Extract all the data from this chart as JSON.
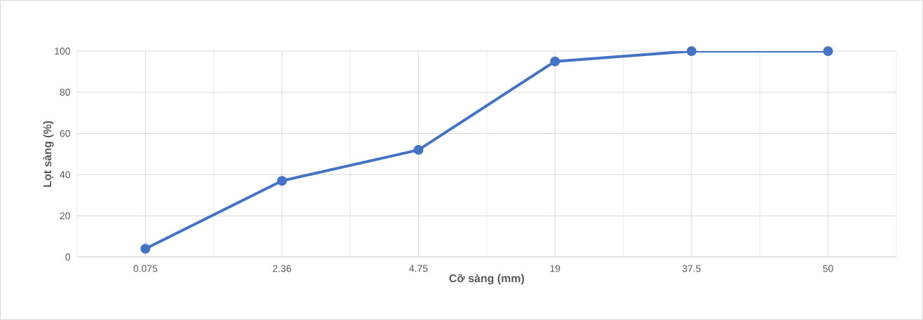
{
  "chart_data": {
    "type": "line",
    "xlabel": "Cỡ sàng (mm)",
    "ylabel": "Lọt sàng (%)",
    "categories": [
      "0.075",
      "2.36",
      "4.75",
      "19",
      "37.5",
      "50"
    ],
    "series": [
      {
        "color": "#4472c4",
        "values": [
          4,
          37,
          52,
          95,
          100,
          100
        ]
      }
    ],
    "ylim": [
      0,
      100
    ],
    "yticks": [
      0,
      20,
      40,
      60,
      80,
      100
    ],
    "grid": true,
    "marker": "circle",
    "line_style": "solid"
  }
}
